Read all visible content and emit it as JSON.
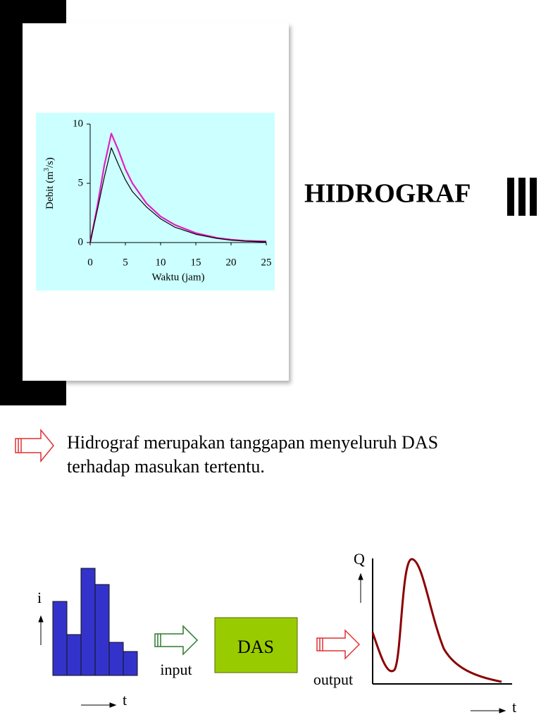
{
  "chart_data": {
    "type": "line",
    "ylabel_parts": [
      "Debit (m",
      "3",
      "/s)"
    ],
    "xlabel": "Waktu (jam)",
    "x": [
      0,
      1,
      2,
      3,
      4,
      5,
      6,
      8,
      10,
      12,
      15,
      18,
      20,
      22,
      25
    ],
    "series": [
      {
        "color": "#e020c0",
        "values": [
          0,
          3,
          6.5,
          9.2,
          7.8,
          6.2,
          5.0,
          3.3,
          2.2,
          1.5,
          0.8,
          0.4,
          0.25,
          0.15,
          0.1
        ]
      },
      {
        "color": "#000000",
        "values": [
          0,
          2.7,
          5.5,
          8.0,
          6.6,
          5.3,
          4.3,
          3.0,
          2.0,
          1.3,
          0.7,
          0.35,
          0.2,
          0.12,
          0.05
        ]
      }
    ],
    "xlim": [
      0,
      25
    ],
    "ylim": [
      0,
      10
    ],
    "xticks": [
      0,
      5,
      10,
      15,
      20,
      25
    ],
    "yticks": [
      0,
      5,
      10
    ]
  },
  "slide": {
    "title": "HIDROGRAF",
    "bullet": {
      "lines": [
        "Hidrograf merupakan tanggapan menyeluruh DAS",
        "terhadap masukan tertentu."
      ]
    },
    "diagram": {
      "rain_axis": "i",
      "rain_time": "t",
      "input": "input",
      "box": "DAS",
      "output": "output",
      "flow_axis": "Q",
      "flow_time": "t"
    }
  }
}
